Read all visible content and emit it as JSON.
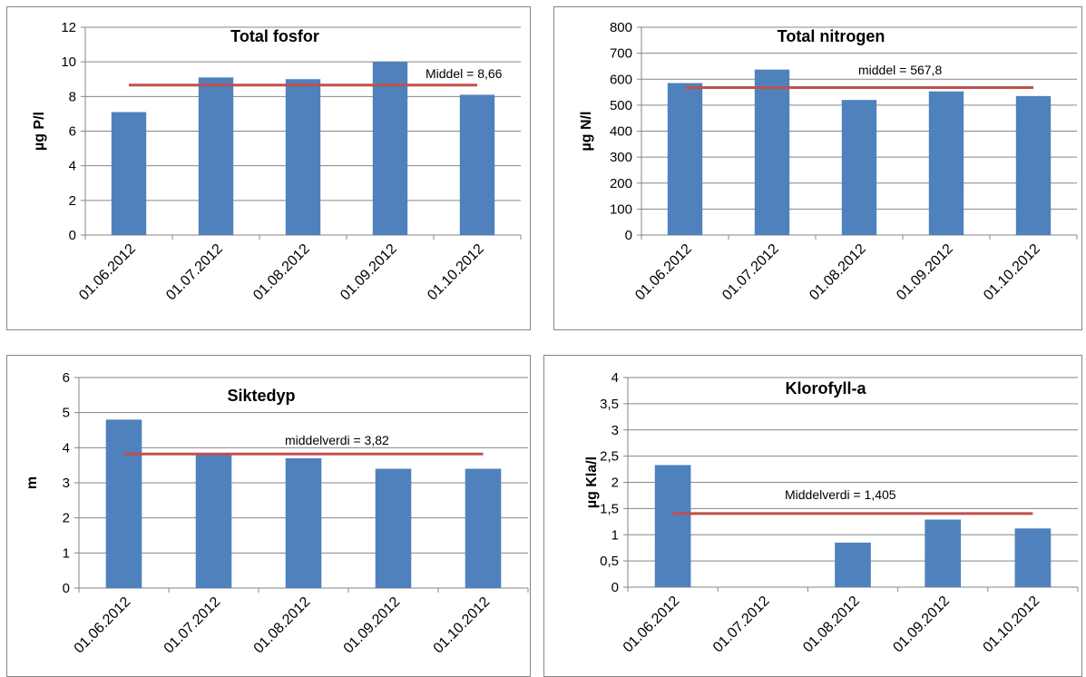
{
  "chart_data": [
    {
      "type": "bar",
      "title": "Total fosfor",
      "ylabel": "µg P/l",
      "ylim": [
        0,
        12
      ],
      "ytick_step": 2,
      "decimal_comma": false,
      "categories": [
        "01.06.2012",
        "01.07.2012",
        "01.08.2012",
        "01.09.2012",
        "01.10.2012"
      ],
      "values": [
        7.1,
        9.1,
        9.0,
        10.0,
        8.1
      ],
      "mean": {
        "value": 8.66,
        "label": "Middel  = 8,66"
      },
      "grid": true,
      "bar_color": "#4F81BD",
      "line_color": "#C0504D"
    },
    {
      "type": "bar",
      "title": "Total nitrogen",
      "ylabel": "µg N/l",
      "ylim": [
        0,
        800
      ],
      "ytick_step": 100,
      "decimal_comma": false,
      "categories": [
        "01.06.2012",
        "01.07.2012",
        "01.08.2012",
        "01.09.2012",
        "01.10.2012"
      ],
      "values": [
        585,
        637,
        520,
        553,
        535
      ],
      "mean": {
        "value": 567.8,
        "label": "middel  = 567,8"
      },
      "grid": true,
      "bar_color": "#4F81BD",
      "line_color": "#C0504D"
    },
    {
      "type": "bar",
      "title": "Siktedyp",
      "ylabel": "m",
      "ylim": [
        0,
        6
      ],
      "ytick_step": 1,
      "decimal_comma": false,
      "categories": [
        "01.06.2012",
        "01.07.2012",
        "01.08.2012",
        "01.09.2012",
        "01.10.2012"
      ],
      "values": [
        4.8,
        3.8,
        3.7,
        3.4,
        3.4
      ],
      "mean": {
        "value": 3.82,
        "label": "middelverdi  = 3,82"
      },
      "grid": true,
      "bar_color": "#4F81BD",
      "line_color": "#C0504D"
    },
    {
      "type": "bar",
      "title": "Klorofyll-a",
      "ylabel": "µg Kla/l",
      "ylim": [
        0,
        4
      ],
      "ytick_step": 0.5,
      "decimal_comma": true,
      "categories": [
        "01.06.2012",
        "01.07.2012",
        "01.08.2012",
        "01.09.2012",
        "01.10.2012"
      ],
      "values": [
        2.33,
        null,
        0.85,
        1.29,
        1.12
      ],
      "mean": {
        "value": 1.405,
        "label": "Middelverdi  = 1,405"
      },
      "grid": true,
      "bar_color": "#4F81BD",
      "line_color": "#C0504D"
    }
  ]
}
